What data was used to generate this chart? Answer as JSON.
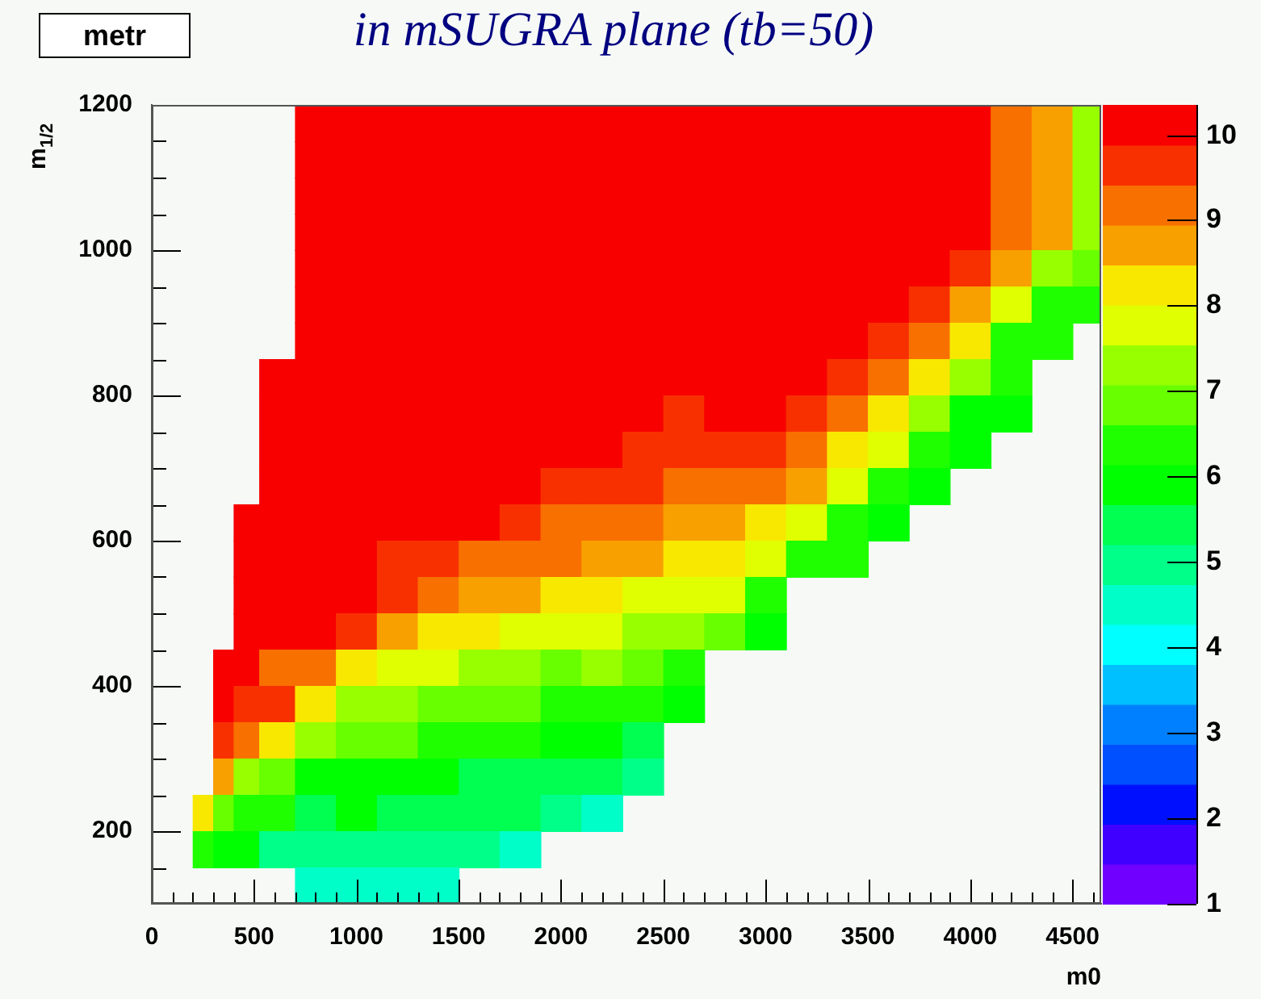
{
  "chart_data": {
    "type": "heatmap",
    "title": "in mSUGRA plane (tb=50)",
    "xlabel": "m0",
    "ylabel": "m$_{1/2}$",
    "annotations": [
      "metr"
    ],
    "x": [
      250,
      350,
      450,
      600,
      800,
      1000,
      1200,
      1400,
      1600,
      1800,
      2000,
      2200,
      2400,
      2600,
      2800,
      3000,
      3200,
      3400,
      3600,
      3800,
      4000,
      4200,
      4400,
      4600
    ],
    "cells": [
      [
        null,
        null,
        null,
        null,
        10.1,
        10.1,
        10.1,
        10.1,
        10.1,
        10.1,
        10.1,
        10.1,
        10.1,
        10.1,
        10.1,
        10.1,
        10.1,
        10.1,
        10.1,
        10.1,
        10.1,
        9.2,
        8.7,
        7.3
      ],
      [
        null,
        null,
        null,
        null,
        10.1,
        10.1,
        10.1,
        10.1,
        10.1,
        10.1,
        10.1,
        10.1,
        10.1,
        10.1,
        10.1,
        10.1,
        10.1,
        10.1,
        10.1,
        10.1,
        10.1,
        9.2,
        8.7,
        7.3
      ],
      [
        null,
        null,
        null,
        null,
        10.1,
        10.1,
        10.1,
        10.1,
        10.1,
        10.1,
        10.1,
        10.1,
        10.1,
        10.1,
        10.1,
        10.1,
        10.1,
        10.1,
        10.1,
        10.1,
        10.1,
        9.2,
        8.7,
        7.3
      ],
      [
        null,
        null,
        null,
        null,
        10.1,
        10.1,
        10.1,
        10.1,
        10.1,
        10.1,
        10.1,
        10.1,
        10.1,
        10.1,
        10.1,
        10.1,
        10.1,
        10.1,
        10.1,
        10.1,
        10.1,
        9.2,
        8.7,
        7.3
      ],
      [
        null,
        null,
        null,
        null,
        10.1,
        10.1,
        10.1,
        10.1,
        10.1,
        10.1,
        10.1,
        10.1,
        10.1,
        10.1,
        10.1,
        10.1,
        10.1,
        10.1,
        10.1,
        10.1,
        9.7,
        8.7,
        7.3,
        6.8
      ],
      [
        null,
        null,
        null,
        null,
        10.1,
        10.1,
        10.1,
        10.1,
        10.1,
        10.1,
        10.1,
        10.1,
        10.1,
        10.1,
        10.1,
        10.1,
        10.1,
        10.1,
        10.1,
        9.7,
        8.7,
        7.8,
        6.4,
        6.4
      ],
      [
        null,
        null,
        null,
        null,
        10.1,
        10.1,
        10.1,
        10.1,
        10.1,
        10.1,
        10.1,
        10.1,
        10.1,
        10.1,
        10.1,
        10.1,
        10.1,
        10.1,
        9.7,
        9.2,
        8.3,
        6.4,
        6.4,
        null
      ],
      [
        null,
        null,
        null,
        10.1,
        10.1,
        10.1,
        10.1,
        10.1,
        10.1,
        10.1,
        10.1,
        10.1,
        10.1,
        10.1,
        10.1,
        10.1,
        10.1,
        9.7,
        9.2,
        8.3,
        7.3,
        6.4,
        null,
        null
      ],
      [
        null,
        null,
        null,
        10.1,
        10.1,
        10.1,
        10.1,
        10.1,
        10.1,
        10.1,
        10.1,
        10.1,
        10.1,
        9.7,
        10.1,
        10.1,
        9.7,
        9.2,
        8.3,
        7.3,
        5.9,
        5.9,
        null,
        null
      ],
      [
        null,
        null,
        null,
        10.1,
        10.1,
        10.1,
        10.1,
        10.1,
        10.1,
        10.1,
        10.1,
        10.1,
        9.7,
        9.7,
        9.7,
        9.7,
        9.2,
        8.3,
        7.8,
        6.4,
        5.9,
        null,
        null,
        null
      ],
      [
        null,
        null,
        null,
        10.1,
        10.1,
        10.1,
        10.1,
        10.1,
        10.1,
        10.1,
        9.7,
        9.7,
        9.7,
        9.2,
        9.2,
        9.2,
        8.7,
        7.8,
        6.4,
        5.9,
        null,
        null,
        null,
        null
      ],
      [
        null,
        null,
        10.1,
        10.1,
        10.1,
        10.1,
        10.1,
        10.1,
        10.1,
        9.7,
        9.2,
        9.2,
        9.2,
        8.7,
        8.7,
        8.3,
        7.8,
        6.4,
        5.9,
        null,
        null,
        null,
        null,
        null
      ],
      [
        null,
        null,
        10.1,
        10.1,
        10.1,
        10.1,
        9.7,
        9.7,
        9.2,
        9.2,
        9.2,
        8.7,
        8.7,
        8.3,
        8.3,
        7.8,
        6.4,
        6.4,
        null,
        null,
        null,
        null,
        null,
        null
      ],
      [
        null,
        null,
        10.1,
        10.1,
        10.1,
        10.1,
        9.7,
        9.2,
        8.7,
        8.7,
        8.3,
        8.3,
        7.8,
        7.8,
        7.8,
        6.4,
        null,
        null,
        null,
        null,
        null,
        null,
        null,
        null
      ],
      [
        null,
        null,
        10.1,
        10.1,
        10.1,
        9.7,
        8.7,
        8.3,
        8.3,
        7.8,
        7.8,
        7.8,
        7.3,
        7.3,
        6.8,
        5.9,
        null,
        null,
        null,
        null,
        null,
        null,
        null,
        null
      ],
      [
        null,
        10.1,
        10.1,
        9.2,
        9.2,
        8.3,
        7.8,
        7.8,
        7.3,
        7.3,
        6.8,
        7.3,
        6.8,
        6.4,
        null,
        null,
        null,
        null,
        null,
        null,
        null,
        null,
        null,
        null
      ],
      [
        null,
        10.1,
        9.7,
        9.7,
        8.3,
        7.3,
        7.3,
        6.8,
        6.8,
        6.8,
        6.4,
        6.4,
        6.4,
        5.9,
        null,
        null,
        null,
        null,
        null,
        null,
        null,
        null,
        null,
        null
      ],
      [
        null,
        9.7,
        9.2,
        8.3,
        7.3,
        6.8,
        6.8,
        6.4,
        6.4,
        6.4,
        5.9,
        5.9,
        5.4,
        null,
        null,
        null,
        null,
        null,
        null,
        null,
        null,
        null,
        null,
        null
      ],
      [
        null,
        8.7,
        7.3,
        6.8,
        5.9,
        5.9,
        5.9,
        5.9,
        5.4,
        5.4,
        5.4,
        5.4,
        5.0,
        null,
        null,
        null,
        null,
        null,
        null,
        null,
        null,
        null,
        null,
        null
      ],
      [
        8.3,
        6.8,
        6.4,
        6.4,
        5.4,
        5.9,
        5.4,
        5.4,
        5.4,
        5.4,
        5.0,
        4.5,
        null,
        null,
        null,
        null,
        null,
        null,
        null,
        null,
        null,
        null,
        null,
        null
      ],
      [
        6.4,
        5.9,
        5.9,
        5.0,
        5.0,
        5.0,
        5.0,
        5.0,
        5.0,
        4.5,
        null,
        null,
        null,
        null,
        null,
        null,
        null,
        null,
        null,
        null,
        null,
        null,
        null,
        null
      ],
      [
        null,
        null,
        null,
        null,
        4.5,
        4.5,
        4.5,
        4.5,
        null,
        null,
        null,
        null,
        null,
        null,
        null,
        null,
        null,
        null,
        null,
        null,
        null,
        null,
        null,
        null
      ]
    ],
    "xlim": [
      0,
      4640
    ],
    "ylim": [
      100,
      1200
    ],
    "xticks": [
      0,
      {
        "value": 100,
        "label": null
      },
      {
        "value": 200,
        "label": null
      },
      {
        "value": 300,
        "label": null
      },
      {
        "value": 400,
        "label": null
      },
      500,
      {
        "value": 600,
        "label": null
      },
      {
        "value": 700,
        "label": null
      },
      {
        "value": 800,
        "label": null
      },
      {
        "value": 900,
        "label": null
      },
      1000,
      {
        "value": 1100,
        "label": null
      },
      {
        "value": 1200,
        "label": null
      },
      {
        "value": 1300,
        "label": null
      },
      {
        "value": 1400,
        "label": null
      },
      1500,
      {
        "value": 1600,
        "label": null
      },
      {
        "value": 1700,
        "label": null
      },
      {
        "value": 1800,
        "label": null
      },
      {
        "value": 1900,
        "label": null
      },
      2000,
      {
        "value": 2100,
        "label": null
      },
      {
        "value": 2200,
        "label": null
      },
      {
        "value": 2300,
        "label": null
      },
      {
        "value": 2400,
        "label": null
      },
      2500,
      {
        "value": 2600,
        "label": null
      },
      {
        "value": 2700,
        "label": null
      },
      {
        "value": 2800,
        "label": null
      },
      {
        "value": 2900,
        "label": null
      },
      3000,
      {
        "value": 3100,
        "label": null
      },
      {
        "value": 3200,
        "label": null
      },
      {
        "value": 3300,
        "label": null
      },
      {
        "value": 3400,
        "label": null
      },
      3500,
      {
        "value": 3600,
        "label": null
      },
      {
        "value": 3700,
        "label": null
      },
      {
        "value": 3800,
        "label": null
      },
      {
        "value": 3900,
        "label": null
      },
      4000,
      {
        "value": 4100,
        "label": null
      },
      {
        "value": 4200,
        "label": null
      },
      {
        "value": 4300,
        "label": null
      },
      {
        "value": 4400,
        "label": null
      },
      4500,
      {
        "value": 4600,
        "label": null
      }
    ],
    "yticks": [
      {
        "value": 150,
        "label": null
      },
      200,
      {
        "value": 250,
        "label": null
      },
      {
        "value": 300,
        "label": null
      },
      {
        "value": 350,
        "label": null
      },
      400,
      {
        "value": 450,
        "label": null
      },
      {
        "value": 500,
        "label": null
      },
      {
        "value": 550,
        "label": null
      },
      600,
      {
        "value": 650,
        "label": null
      },
      {
        "value": 700,
        "label": null
      },
      {
        "value": 750,
        "label": null
      },
      800,
      {
        "value": 850,
        "label": null
      },
      {
        "value": 900,
        "label": null
      },
      {
        "value": 950,
        "label": null
      },
      1000,
      {
        "value": 1050,
        "label": null
      },
      {
        "value": 1100,
        "label": null
      },
      {
        "value": 1150,
        "label": null
      },
      1200
    ],
    "clim": [
      1,
      10.35
    ],
    "cticks": [
      1,
      2,
      3,
      4,
      5,
      6,
      7,
      8,
      9,
      10
    ]
  }
}
